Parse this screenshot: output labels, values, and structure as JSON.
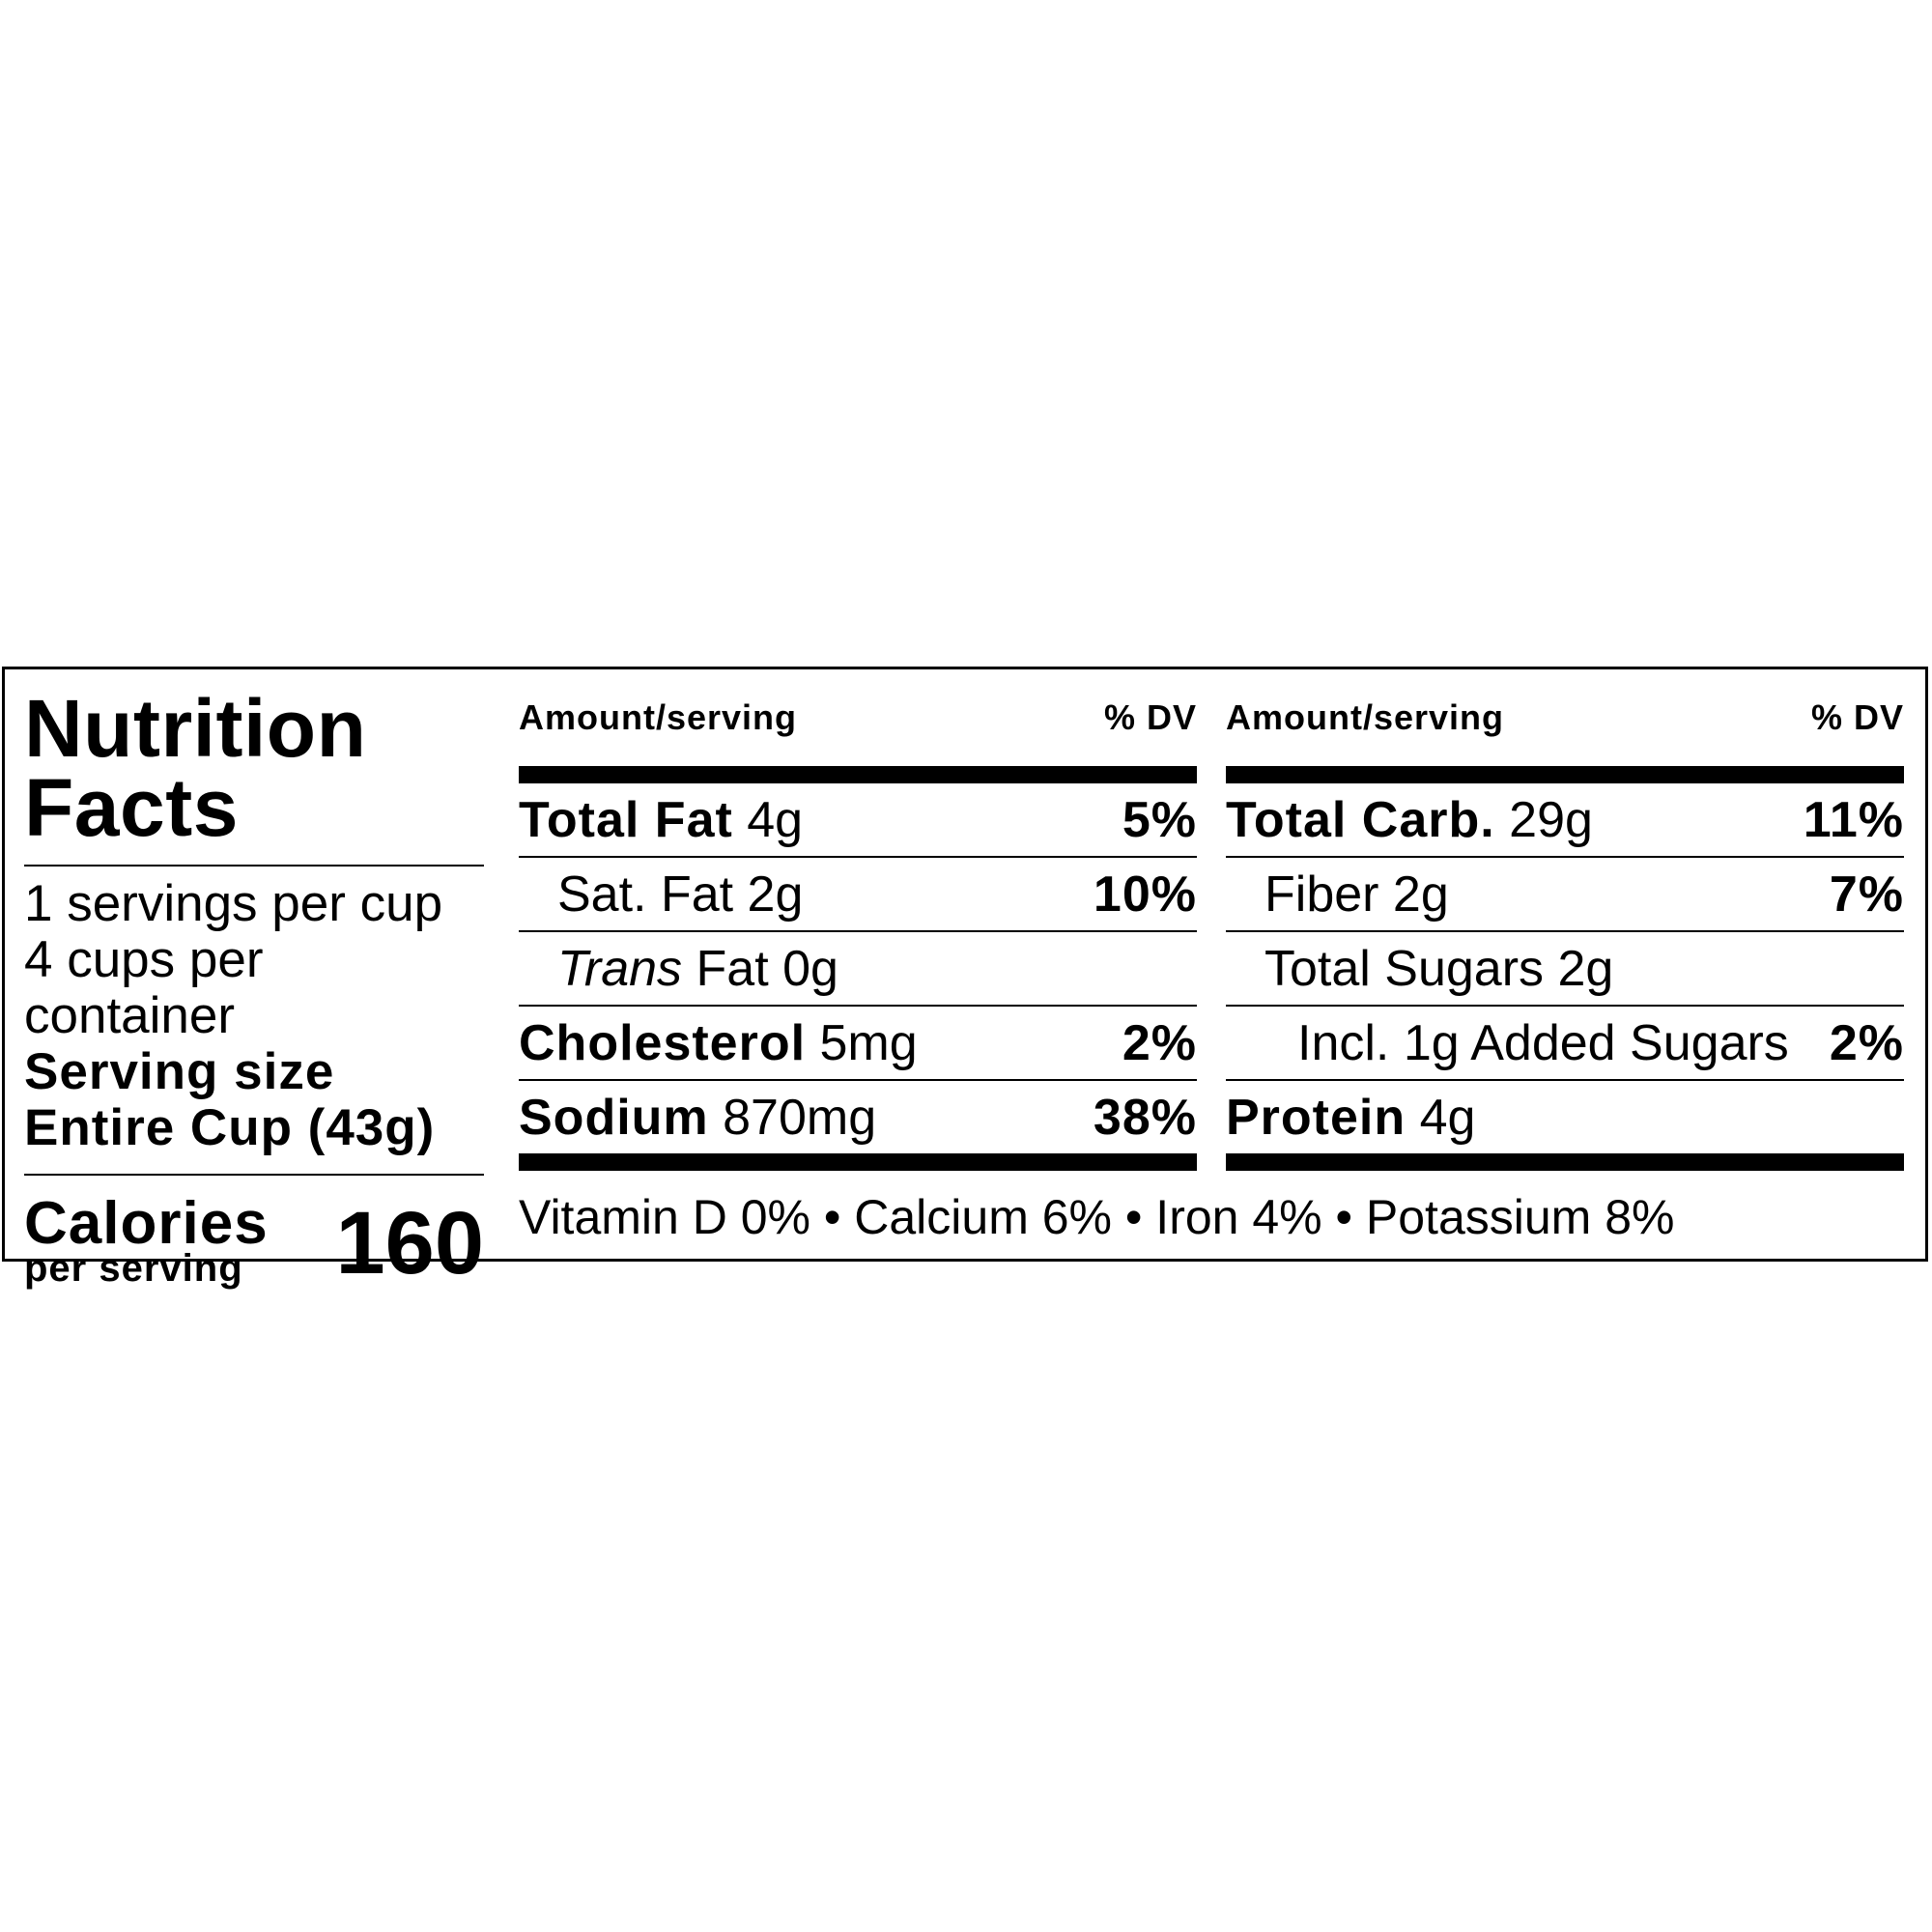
{
  "title_line1": "Nutrition",
  "title_line2": "Facts",
  "servings_per_cup": "1 servings per cup",
  "cups_per_container": "4 cups per container",
  "serving_size_label": "Serving size",
  "serving_size_value": "Entire Cup (43g)",
  "calories_label": "Calories",
  "per_serving_label": "per serving",
  "calories_value": "160",
  "header": {
    "amount": "Amount/serving",
    "dv": "% DV"
  },
  "col1": [
    {
      "bold": "Total Fat",
      "amount": " 4g",
      "dv": "5%"
    },
    {
      "name": "Sat. Fat 2g",
      "dv": "10%"
    },
    {
      "italic": "Trans",
      "name": " Fat 0g",
      "dv": ""
    },
    {
      "bold": "Cholesterol",
      "amount": " 5mg",
      "dv": "2%"
    },
    {
      "bold": "Sodium",
      "amount": " 870mg",
      "dv": "38%"
    }
  ],
  "col2": [
    {
      "bold": "Total Carb.",
      "amount": " 29g",
      "dv": "11%"
    },
    {
      "name": "Fiber 2g",
      "dv": "7%"
    },
    {
      "name": "Total Sugars 2g",
      "dv": ""
    },
    {
      "name": "Incl. 1g Added Sugars",
      "dv": "2%"
    },
    {
      "bold": "Protein",
      "amount": " 4g",
      "dv": ""
    }
  ],
  "vitamins": "Vitamin D 0% • Calcium 6% • Iron 4% • Potassium 8%"
}
